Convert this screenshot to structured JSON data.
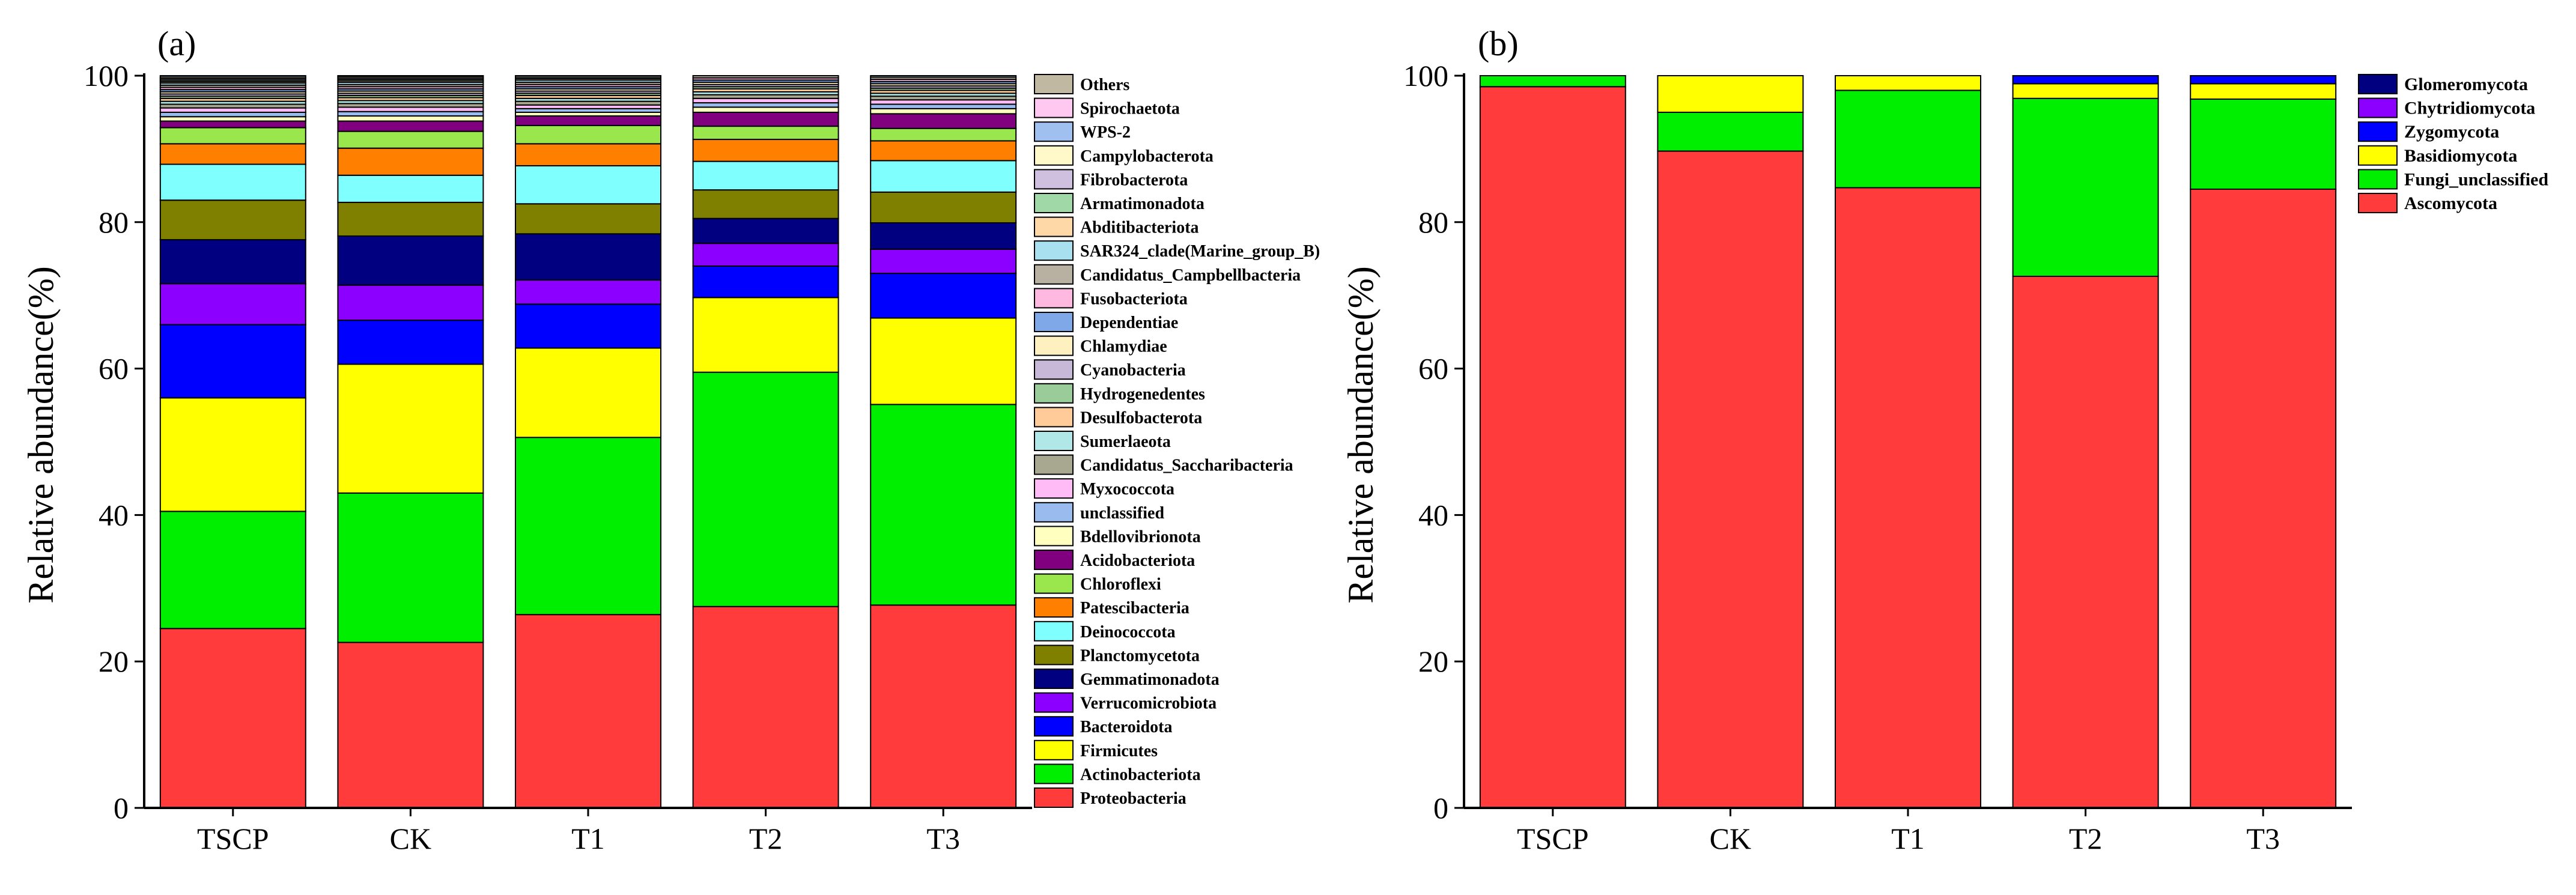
{
  "panels": [
    {
      "label": "(a)",
      "ylabel": "Relative abundance(%)",
      "yticks": [
        0,
        20,
        40,
        60,
        80,
        100
      ],
      "categories": [
        "TSCP",
        "CK",
        "T1",
        "T2",
        "T3"
      ],
      "legend_taxa_top_to_bottom": [
        "Others",
        "Spirochaetota",
        "WPS-2",
        "Campylobacterota",
        "Fibrobacterota",
        "Armatimonadota",
        "Abditibacteriota",
        "SAR324_clade(Marine_group_B)",
        "Candidatus_Campbellbacteria",
        "Fusobacteriota",
        "Dependentiae",
        "Chlamydiae",
        "Cyanobacteria",
        "Hydrogenedentes",
        "Desulfobacterota",
        "Sumerlaeota",
        "Candidatus_Saccharibacteria",
        "Myxococcota",
        "unclassified",
        "Bdellovibrionota",
        "Acidobacteriota",
        "Chloroflexi",
        "Patescibacteria",
        "Deinococcota",
        "Planctomycetota",
        "Gemmatimonadota",
        "Verrucomicrobiota",
        "Bacteroidota",
        "Firmicutes",
        "Actinobacteriota",
        "Proteobacteria"
      ]
    },
    {
      "label": "(b)",
      "ylabel": "Relative abundance(%)",
      "yticks": [
        0,
        20,
        40,
        60,
        80,
        100
      ],
      "categories": [
        "TSCP",
        "CK",
        "T1",
        "T2",
        "T3"
      ],
      "legend_taxa_top_to_bottom": [
        "Glomeromycota",
        "Chytridiomycota",
        "Zygomycota",
        "Basidiomycota",
        "Fungi_unclassified",
        "Ascomycota"
      ]
    }
  ],
  "chart_data": [
    {
      "type": "bar",
      "stacked": true,
      "title": "",
      "xlabel": "",
      "ylabel": "Relative abundance(%)",
      "ylim": [
        0,
        100
      ],
      "grid": false,
      "legend_position": "right",
      "categories": [
        "TSCP",
        "CK",
        "T1",
        "T2",
        "T3"
      ],
      "series": [
        {
          "name": "Proteobacteria",
          "color": "#FF3B3B",
          "values": [
            24.5,
            22.6,
            26.4,
            27.5,
            27.7
          ]
        },
        {
          "name": "Actinobacteriota",
          "color": "#00EE00",
          "values": [
            16.0,
            20.4,
            24.2,
            32.0,
            27.4
          ]
        },
        {
          "name": "Firmicutes",
          "color": "#FFFF00",
          "values": [
            15.5,
            17.6,
            12.2,
            10.2,
            11.8
          ]
        },
        {
          "name": "Bacteroidota",
          "color": "#0000FF",
          "values": [
            10.0,
            6.0,
            6.0,
            4.3,
            6.1
          ]
        },
        {
          "name": "Verrucomicrobiota",
          "color": "#8B00FF",
          "values": [
            5.6,
            4.8,
            3.3,
            3.1,
            3.3
          ]
        },
        {
          "name": "Gemmatimonadota",
          "color": "#000080",
          "values": [
            6.0,
            6.7,
            6.3,
            3.4,
            3.6
          ]
        },
        {
          "name": "Planctomycetota",
          "color": "#808000",
          "values": [
            5.4,
            4.6,
            4.1,
            3.9,
            4.2
          ]
        },
        {
          "name": "Deinococcota",
          "color": "#80FFFF",
          "values": [
            4.9,
            3.7,
            5.2,
            3.9,
            4.3
          ]
        },
        {
          "name": "Patescibacteria",
          "color": "#FF8000",
          "values": [
            2.8,
            3.7,
            3.0,
            3.0,
            2.7
          ]
        },
        {
          "name": "Chloroflexi",
          "color": "#99E64D",
          "values": [
            2.2,
            2.3,
            2.5,
            1.8,
            1.7
          ]
        },
        {
          "name": "Acidobacteriota",
          "color": "#800080",
          "values": [
            0.9,
            1.4,
            1.3,
            1.9,
            2.0
          ]
        },
        {
          "name": "Bdellovibrionota",
          "color": "#FFFFC0",
          "values": [
            0.6,
            0.7,
            0.5,
            0.7,
            0.7
          ]
        },
        {
          "name": "unclassified",
          "color": "#99BBEE",
          "values": [
            0.6,
            0.6,
            0.5,
            0.6,
            0.6
          ]
        },
        {
          "name": "Myxococcota",
          "color": "#FFBBF5",
          "values": [
            0.6,
            0.6,
            0.5,
            0.6,
            0.6
          ]
        },
        {
          "name": "Candidatus_Saccharibacteria",
          "color": "#A8A890",
          "values": [
            0.5,
            0.5,
            0.5,
            0.5,
            0.5
          ]
        },
        {
          "name": "Sumerlaeota",
          "color": "#B0E8E8",
          "values": [
            0.4,
            0.4,
            0.4,
            0.4,
            0.4
          ]
        },
        {
          "name": "Desulfobacterota",
          "color": "#FFCC99",
          "values": [
            0.4,
            0.4,
            0.4,
            0.4,
            0.4
          ]
        },
        {
          "name": "Hydrogenedentes",
          "color": "#99CC99",
          "values": [
            0.3,
            0.3,
            0.3,
            0.3,
            0.3
          ]
        },
        {
          "name": "Cyanobacteria",
          "color": "#C8B8D8",
          "values": [
            0.3,
            0.3,
            0.3,
            0.3,
            0.3
          ]
        },
        {
          "name": "Chlamydiae",
          "color": "#FFF0C0",
          "values": [
            0.3,
            0.3,
            0.3,
            0.3,
            0.3
          ]
        },
        {
          "name": "Dependentiae",
          "color": "#7FA8E8",
          "values": [
            0.3,
            0.3,
            0.3,
            0.3,
            0.3
          ]
        },
        {
          "name": "Fusobacteriota",
          "color": "#FFB8E0",
          "values": [
            0.3,
            0.3,
            0.3,
            0.3,
            0.3
          ]
        },
        {
          "name": "Candidatus_Campbellbacteria",
          "color": "#B8B0A0",
          "values": [
            0.3,
            0.3,
            0.3,
            0.3,
            0.3
          ]
        },
        {
          "name": "SAR324_clade(Marine_group_B)",
          "color": "#A8E0F0",
          "values": [
            0.3,
            0.3,
            0.3,
            0.3,
            0.3
          ]
        },
        {
          "name": "Abditibacteriota",
          "color": "#FFD8A8",
          "values": [
            0.2,
            0.2,
            0.2,
            0.2,
            0.2
          ]
        },
        {
          "name": "Armatimonadota",
          "color": "#A0D8A8",
          "values": [
            0.2,
            0.2,
            0.2,
            0.2,
            0.2
          ]
        },
        {
          "name": "Fibrobacterota",
          "color": "#D0C0E0",
          "values": [
            0.2,
            0.2,
            0.2,
            0.2,
            0.2
          ]
        },
        {
          "name": "Campylobacterota",
          "color": "#FFF8C8",
          "values": [
            0.2,
            0.2,
            0.2,
            0.2,
            0.2
          ]
        },
        {
          "name": "WPS-2",
          "color": "#A0C0F0",
          "values": [
            0.2,
            0.2,
            0.2,
            0.2,
            0.2
          ]
        },
        {
          "name": "Spirochaetota",
          "color": "#FFC8F0",
          "values": [
            0.2,
            0.2,
            0.2,
            0.2,
            0.2
          ]
        },
        {
          "name": "Others",
          "color": "#C0B8A0",
          "values": [
            0.6,
            0.3,
            0.3,
            0.3,
            0.3
          ]
        }
      ]
    },
    {
      "type": "bar",
      "stacked": true,
      "title": "",
      "xlabel": "",
      "ylabel": "Relative abundance(%)",
      "ylim": [
        0,
        100
      ],
      "grid": false,
      "legend_position": "right",
      "categories": [
        "TSCP",
        "CK",
        "T1",
        "T2",
        "T3"
      ],
      "series": [
        {
          "name": "Ascomycota",
          "color": "#FF3B3B",
          "values": [
            98.5,
            89.7,
            84.7,
            72.6,
            84.5
          ]
        },
        {
          "name": "Fungi_unclassified",
          "color": "#00EE00",
          "values": [
            1.5,
            5.3,
            13.3,
            24.3,
            12.3
          ]
        },
        {
          "name": "Basidiomycota",
          "color": "#FFFF00",
          "values": [
            0.0,
            5.0,
            2.0,
            2.0,
            2.1
          ]
        },
        {
          "name": "Zygomycota",
          "color": "#0000FF",
          "values": [
            0.0,
            0.0,
            0.0,
            1.1,
            1.1
          ]
        },
        {
          "name": "Chytridiomycota",
          "color": "#8B00FF",
          "values": [
            0.0,
            0.0,
            0.0,
            0.0,
            0.0
          ]
        },
        {
          "name": "Glomeromycota",
          "color": "#000080",
          "values": [
            0.0,
            0.0,
            0.0,
            0.0,
            0.0
          ]
        }
      ]
    }
  ]
}
